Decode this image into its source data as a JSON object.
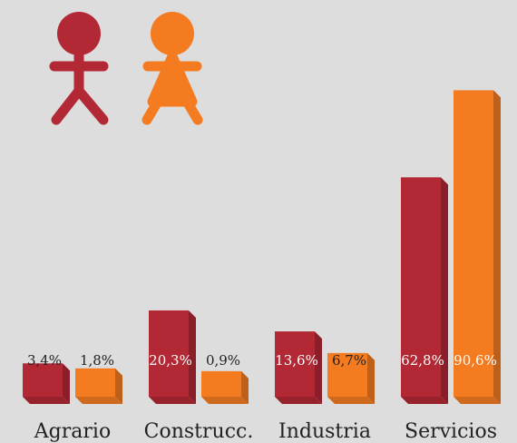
{
  "chart_data": {
    "type": "bar",
    "categories": [
      "Agrario",
      "Construcc.",
      "Industria",
      "Servicios"
    ],
    "series": [
      {
        "color": "#b22834",
        "values": [
          3.4,
          20.3,
          13.6,
          62.8
        ],
        "value_labels": [
          "3,4%",
          "20,3%",
          "13,6%",
          "62,8%"
        ]
      },
      {
        "color": "#f47b20",
        "values": [
          1.8,
          0.9,
          6.7,
          90.6
        ],
        "value_labels": [
          "1,8%",
          "0,9%",
          "6,7%",
          "90,6%"
        ]
      }
    ]
  }
}
